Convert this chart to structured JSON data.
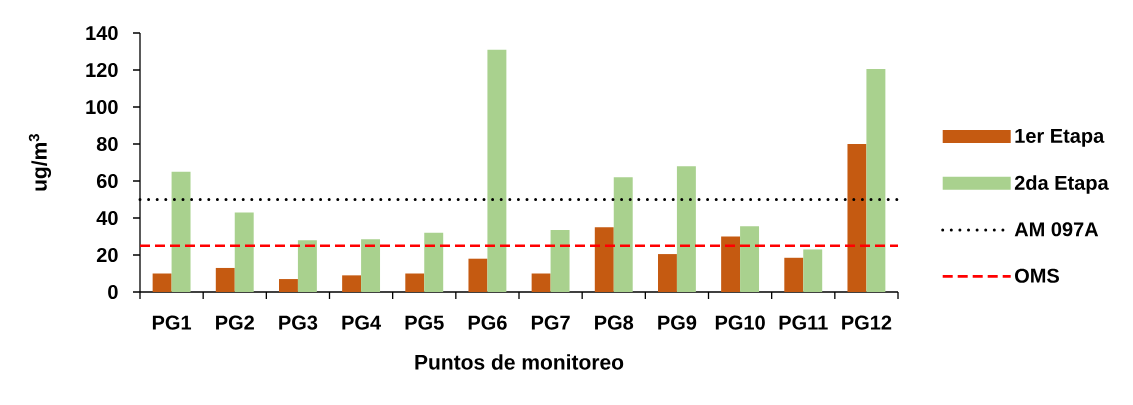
{
  "chart_data": {
    "type": "bar",
    "xlabel": "Puntos de monitoreo",
    "ylabel": "ug/m$^{3}$",
    "categories": [
      "PG1",
      "PG2",
      "PG3",
      "PG4",
      "PG5",
      "PG6",
      "PG7",
      "PG8",
      "PG9",
      "PG10",
      "PG11",
      "PG12"
    ],
    "series": [
      {
        "name": "1er Etapa",
        "color": "#c55a11",
        "values": [
          10,
          13,
          7,
          9,
          10,
          18,
          10,
          35,
          20.5,
          30,
          18.5,
          80
        ]
      },
      {
        "name": "2da Etapa",
        "color": "#a9d18e",
        "values": [
          65,
          43,
          28,
          28.5,
          32,
          131,
          33.5,
          62,
          68,
          35.5,
          23,
          120.5
        ]
      }
    ],
    "ylim": [
      0,
      140
    ],
    "yticks": [
      0,
      20,
      40,
      60,
      80,
      100,
      120,
      140
    ],
    "ref_lines": [
      {
        "axis": "y",
        "value": 50,
        "label": "AM 097A",
        "color": "#000000",
        "line_style": "dotted"
      },
      {
        "axis": "y",
        "value": 25,
        "label": "OMS",
        "color": "#ff0000",
        "line_style": "dashed"
      }
    ],
    "legend": "right"
  }
}
